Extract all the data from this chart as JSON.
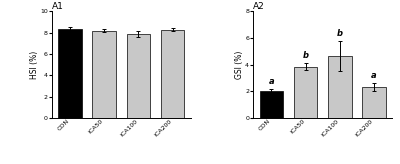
{
  "panel1": {
    "title": "A1",
    "ylabel": "HSI (%)",
    "categories": [
      "CON",
      "ICA50",
      "ICA100",
      "ICA200"
    ],
    "values": [
      8.4,
      8.2,
      7.9,
      8.3
    ],
    "errors": [
      0.15,
      0.12,
      0.25,
      0.15
    ],
    "bar_colors": [
      "#000000",
      "#c8c8c8",
      "#c8c8c8",
      "#c8c8c8"
    ],
    "ylim": [
      0,
      10
    ],
    "yticks": [
      0,
      2,
      4,
      6,
      8,
      10
    ],
    "significance": [
      "",
      "",
      "",
      ""
    ],
    "sig_fontsize": 6
  },
  "panel2": {
    "title": "A2",
    "ylabel": "GSI (%)",
    "categories": [
      "CON",
      "ICA50",
      "ICA100",
      "ICA200"
    ],
    "values": [
      2.05,
      3.85,
      4.65,
      2.35
    ],
    "errors": [
      0.12,
      0.25,
      1.1,
      0.3
    ],
    "bar_colors": [
      "#000000",
      "#c8c8c8",
      "#c8c8c8",
      "#c8c8c8"
    ],
    "ylim": [
      0,
      8
    ],
    "yticks": [
      0,
      2,
      4,
      6,
      8
    ],
    "significance": [
      "a",
      "b",
      "b",
      "a"
    ],
    "sig_fontsize": 6
  }
}
